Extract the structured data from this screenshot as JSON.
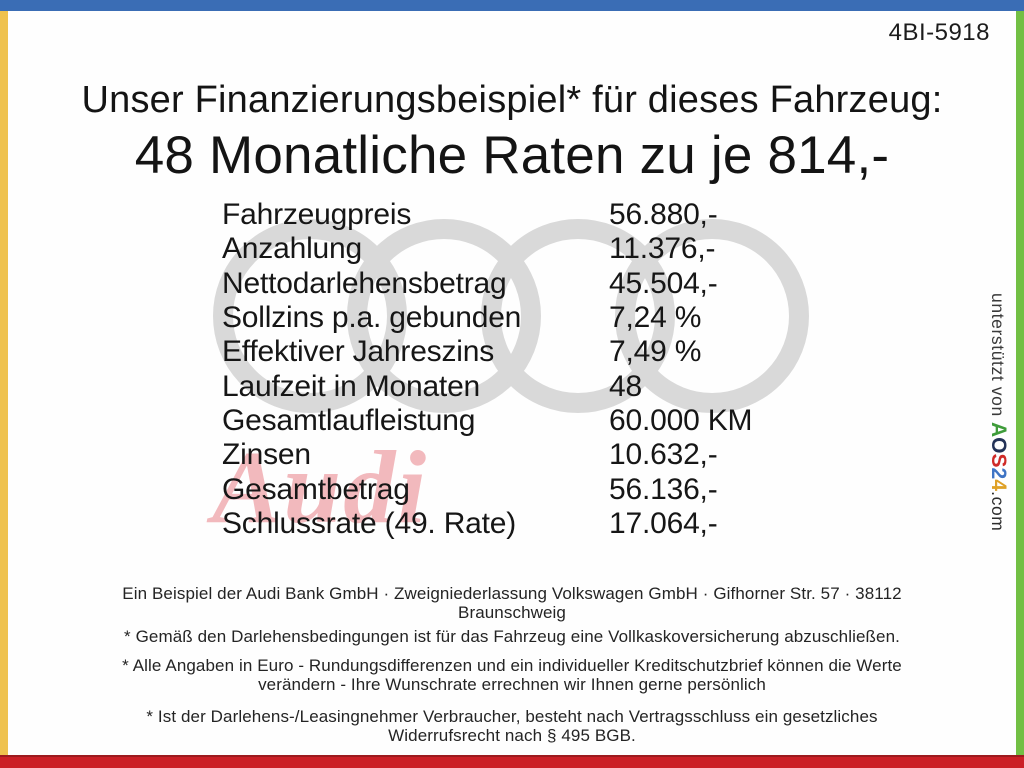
{
  "page": {
    "doc_code": "4BI-5918"
  },
  "title": {
    "line1": "Unser Finanzierungsbeispiel* für dieses Fahrzeug:",
    "line2": "48 Monatliche Raten zu je 814,-"
  },
  "finance_table": {
    "rows": [
      {
        "label": "Fahrzeugpreis",
        "value": "56.880,-"
      },
      {
        "label": "Anzahlung",
        "value": "11.376,-"
      },
      {
        "label": "Nettodarlehensbetrag",
        "value": "45.504,-"
      },
      {
        "label": "Sollzins p.a. gebunden",
        "value": "7,24 %"
      },
      {
        "label": "Effektiver Jahreszins",
        "value": "7,49 %"
      },
      {
        "label": "Laufzeit in Monaten",
        "value": "48"
      },
      {
        "label": "Gesamtlaufleistung",
        "value": "60.000 KM"
      },
      {
        "label": "Zinsen",
        "value": "10.632,-"
      },
      {
        "label": "Gesamtbetrag",
        "value": "56.136,-"
      },
      {
        "label": "Schlussrate (49. Rate)",
        "value": "17.064,-"
      }
    ]
  },
  "watermark": {
    "rings_color": "#d9d9d9",
    "brand_text": "Audi",
    "brand_color": "#f2b9bd"
  },
  "footer": {
    "paragraphs": [
      {
        "lines": [
          "Ein Beispiel der Audi Bank GmbH · Zweigniederlassung Volkswagen GmbH · Gifhorner Str. 57 · 38112",
          "Braunschweig"
        ]
      },
      {
        "lines": [
          "* Gemäß den Darlehensbedingungen ist für das Fahrzeug eine Vollkaskoversicherung abzuschließen."
        ]
      },
      {
        "lines": [
          "* Alle Angaben in Euro - Rundungsdifferenzen und ein individueller Kreditschutzbrief können die Werte",
          "verändern - Ihre Wunschrate errechnen wir Ihnen gerne persönlich"
        ]
      },
      {
        "lines": [
          "* Ist der Darlehens-/Leasingnehmer Verbraucher, besteht nach Vertragsschluss ein gesetzliches",
          "Widerrufsrecht nach § 495 BGB."
        ]
      }
    ]
  },
  "sidebar": {
    "prefix": "unterstützt von ",
    "logo": {
      "letters": [
        {
          "ch": "A",
          "color": "#3f9c3a"
        },
        {
          "ch": "O",
          "color": "#233257"
        },
        {
          "ch": "S",
          "color": "#cf2a27"
        },
        {
          "ch": "2",
          "color": "#3f74c4"
        },
        {
          "ch": "4",
          "color": "#dfa126"
        }
      ],
      "suffix": ".com"
    }
  },
  "frame": {
    "top_color": "#3a6db5",
    "left_color": "#efc24e",
    "right_color": "#72bf44",
    "bottom_color": "#cb2026",
    "bottom_edge_color": "#9c1b1e"
  }
}
